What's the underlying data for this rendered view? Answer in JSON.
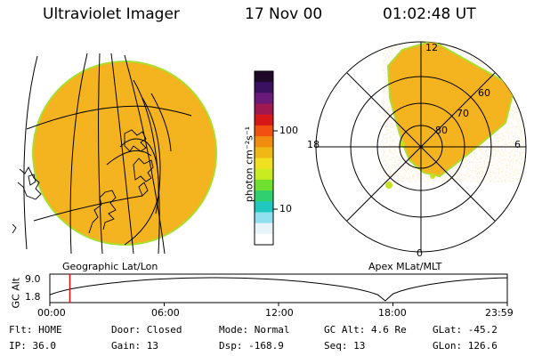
{
  "header": {
    "instrument": "Ultraviolet Imager",
    "date": "17 Nov 00",
    "time": "01:02:48 UT"
  },
  "colorbar": {
    "unit_label": "photon cm⁻²s⁻¹",
    "ticks": [
      "100",
      "10"
    ],
    "scale": "log",
    "colors": [
      "#1e0a28",
      "#3a1060",
      "#6a1a7a",
      "#a01850",
      "#d81818",
      "#f05010",
      "#f08c10",
      "#f0b814",
      "#f0e020",
      "#c8ec20",
      "#70e030",
      "#30d070",
      "#20c8c0",
      "#90e0f0",
      "#e8f4fa",
      "#ffffff"
    ]
  },
  "panels": {
    "left_caption": "Geographic Lat/Lon",
    "right_caption": "Apex MLat/MLT",
    "polar_mlt_labels": [
      "12",
      "18",
      "6",
      "0"
    ],
    "polar_mlat_labels": [
      "60",
      "70",
      "80"
    ]
  },
  "altitude_plot": {
    "ylabel": "GC Alt",
    "yticks": [
      "9.0",
      "1.8"
    ],
    "xticks": [
      "00:00",
      "06:00",
      "12:00",
      "18:00",
      "23:59"
    ],
    "current_time_marker_hours": 1.05,
    "marker_color": "#e01010"
  },
  "status": {
    "row1": {
      "flt": "Flt: HOME",
      "door": "Door: Closed",
      "mode": "Mode: Normal",
      "gc_alt": "GC Alt: 4.6 Re",
      "glat": "GLat: -45.2"
    },
    "row2": {
      "ip": "IP: 36.0",
      "gain": "Gain: 13",
      "dsp": "Dsp: -168.9",
      "seq": "Seq: 13",
      "glon": "GLon: 126.6"
    }
  },
  "colors": {
    "aurora_fill": "#f4b41e",
    "aurora_edge": "#a8e030",
    "grid_line": "#000000"
  }
}
